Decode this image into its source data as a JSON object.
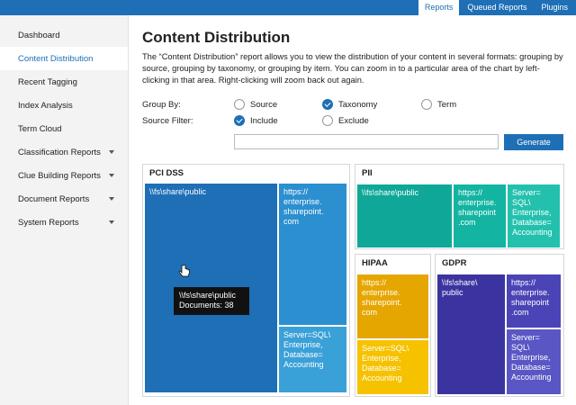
{
  "topnav": {
    "tabs": [
      {
        "label": "Reports",
        "active": true
      },
      {
        "label": "Queued Reports",
        "active": false
      },
      {
        "label": "Plugins",
        "active": false
      }
    ]
  },
  "sidebar": {
    "items": [
      {
        "label": "Dashboard",
        "active": false,
        "caret": false
      },
      {
        "label": "Content Distribution",
        "active": true,
        "caret": false
      },
      {
        "label": "Recent Tagging",
        "active": false,
        "caret": false
      },
      {
        "label": "Index Analysis",
        "active": false,
        "caret": false
      },
      {
        "label": "Term Cloud",
        "active": false,
        "caret": false
      },
      {
        "label": "Classification Reports",
        "active": false,
        "caret": true
      },
      {
        "label": "Clue Building Reports",
        "active": false,
        "caret": true
      },
      {
        "label": "Document Reports",
        "active": false,
        "caret": true
      },
      {
        "label": "System Reports",
        "active": false,
        "caret": true
      }
    ]
  },
  "main": {
    "title": "Content Distribution",
    "description": "The “Content Distribution” report allows you to view the distribution of your content in several formats: grouping by source, grouping by taxonomy, or grouping by item. You can zoom in to a particular area of the chart by left-clicking in that area. Right-clicking will zoom back out again.",
    "group_by": {
      "label": "Group By:",
      "options": [
        "Source",
        "Taxonomy",
        "Term"
      ],
      "selected": "Taxonomy"
    },
    "source_filter": {
      "label": "Source Filter:",
      "options": [
        "Include",
        "Exclude"
      ],
      "selected": "Include",
      "value": "",
      "placeholder": ""
    },
    "generate_label": "Generate"
  },
  "treemap": {
    "colors": {
      "pci_dark": "#1e6fb6",
      "pci_mid": "#2b8fd0",
      "pci_light": "#3aa0d8",
      "pii_dark": "#0fa898",
      "pii_light": "#23c1ad",
      "hipaa_dark": "#e6a600",
      "hipaa_light": "#f6c200",
      "gdpr_dark": "#3b34a0",
      "gdpr_mid": "#4a44b6",
      "gdpr_light": "#5a56c4"
    },
    "panels": {
      "pci": {
        "title": "PCI DSS",
        "tiles": [
          "\\\\fs\\share\\public",
          "https://\nenterprise.\nsharepoint.\ncom",
          "Server=SQL\\\nEnterprise,\nDatabase=\nAccounting"
        ]
      },
      "pii": {
        "title": "PII",
        "tiles": [
          "\\\\fs\\share\\public",
          "https://\nenterprise.\nsharepoint\n.com",
          "Server=\nSQL\\\nEnterprise,\nDatabase=\nAccounting"
        ]
      },
      "hipaa": {
        "title": "HIPAA",
        "tiles": [
          "https://\nenterprise.\nsharepoint.\ncom",
          "Server=SQL\\\nEnterprise,\nDatabase=\nAccounting"
        ]
      },
      "gdpr": {
        "title": "GDPR",
        "tiles": [
          "\\\\fs\\share\\\npublic",
          "https://\nenterprise.\nsharepoint\n.com",
          "Server=\nSQL\\\nEnterprise,\nDatabase=\nAccounting"
        ]
      }
    },
    "tooltip": {
      "line1": "\\\\fs\\share\\public",
      "line2": "Documents: 38"
    }
  }
}
